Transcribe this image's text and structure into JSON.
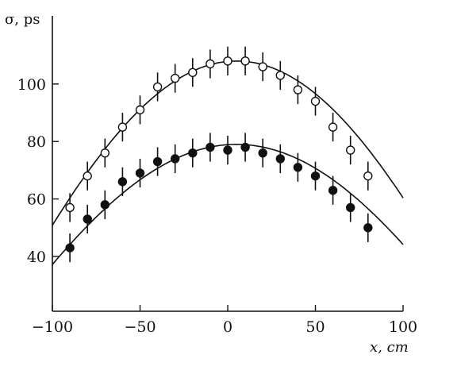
{
  "chart_data": {
    "type": "scatter",
    "xlabel": "x, cm",
    "ylabel": "σ, ps",
    "xlim": [
      -100,
      100
    ],
    "ylim": [
      30,
      130
    ],
    "xticks": [
      -100,
      -50,
      0,
      50,
      100
    ],
    "xtick_labels": [
      "−100",
      "−50",
      "0",
      "50",
      "100"
    ],
    "yticks": [
      40,
      60,
      80,
      100
    ],
    "ytick_labels": [
      "40",
      "60",
      "80",
      "100"
    ],
    "grid": false,
    "series": [
      {
        "marker": "open-circle",
        "x": [
          -90,
          -80,
          -70,
          -60,
          -50,
          -40,
          -30,
          -20,
          -10,
          0,
          10,
          20,
          30,
          40,
          50,
          60,
          70,
          80
        ],
        "y": [
          57,
          68,
          76,
          85,
          91,
          99,
          102,
          104,
          107,
          108,
          108,
          106,
          103,
          98,
          94,
          85,
          77,
          68
        ],
        "err": [
          5,
          5,
          5,
          5,
          5,
          5,
          5,
          5,
          5,
          5,
          5,
          5,
          5,
          5,
          5,
          5,
          5,
          5
        ],
        "fit": {
          "peak": 108,
          "center": 5,
          "halfwidth": 145
        }
      },
      {
        "marker": "filled-circle",
        "x": [
          -90,
          -80,
          -70,
          -60,
          -50,
          -40,
          -30,
          -20,
          -10,
          0,
          10,
          20,
          30,
          40,
          50,
          60,
          70,
          80
        ],
        "y": [
          43,
          53,
          58,
          66,
          69,
          73,
          74,
          76,
          78,
          77,
          78,
          76,
          74,
          71,
          68,
          63,
          57,
          50
        ],
        "err": [
          5,
          5,
          5,
          5,
          5,
          5,
          5,
          5,
          5,
          5,
          5,
          5,
          5,
          5,
          5,
          5,
          5,
          5
        ],
        "fit": {
          "peak": 79,
          "center": 5,
          "halfwidth": 145
        }
      }
    ]
  }
}
